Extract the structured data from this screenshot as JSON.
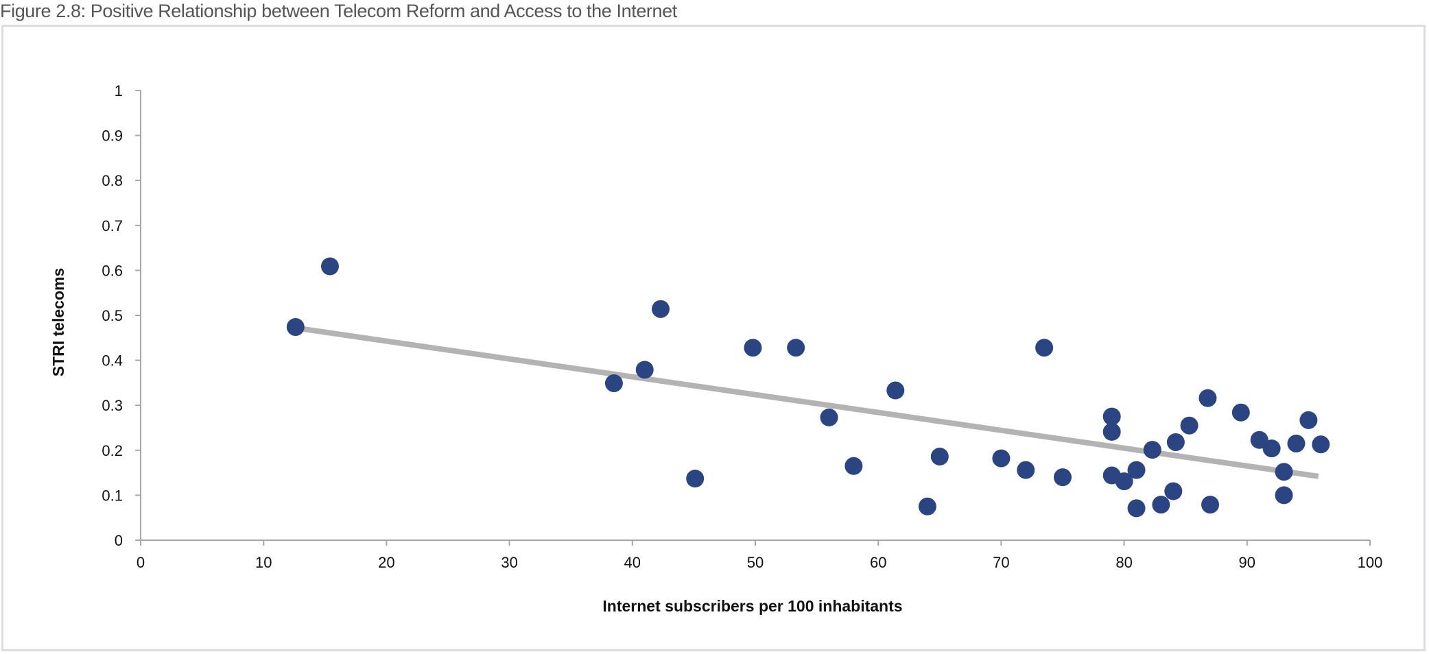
{
  "figure": {
    "caption": "Figure 2.8: Positive Relationship between Telecom Reform and Access to the Internet"
  },
  "chart_data": {
    "type": "scatter",
    "title": "",
    "xlabel": "Internet subscribers per 100 inhabitants",
    "ylabel": "STRI telecoms",
    "xlim": [
      0,
      100
    ],
    "ylim": [
      0,
      1
    ],
    "x_ticks": [
      0,
      10,
      20,
      30,
      40,
      50,
      60,
      70,
      80,
      90,
      100
    ],
    "y_ticks": [
      0,
      0.1,
      0.2,
      0.3,
      0.4,
      0.5,
      0.6,
      0.7,
      0.8,
      0.9,
      1
    ],
    "x_tick_labels": [
      "0",
      "10",
      "20",
      "30",
      "40",
      "50",
      "60",
      "70",
      "80",
      "90",
      "100"
    ],
    "y_tick_labels": [
      "0",
      "0.1",
      "0.2",
      "0.3",
      "0.4",
      "0.5",
      "0.6",
      "0.7",
      "0.8",
      "0.9",
      "1"
    ],
    "grid": false,
    "legend": "none",
    "marker_color": "#2b4582",
    "trendline_color": "#b3b3b3",
    "points": [
      {
        "x": 12.6,
        "y": 0.474
      },
      {
        "x": 15.4,
        "y": 0.609
      },
      {
        "x": 38.5,
        "y": 0.349
      },
      {
        "x": 41.0,
        "y": 0.379
      },
      {
        "x": 42.3,
        "y": 0.514
      },
      {
        "x": 45.1,
        "y": 0.137
      },
      {
        "x": 49.8,
        "y": 0.428
      },
      {
        "x": 53.3,
        "y": 0.428
      },
      {
        "x": 56.0,
        "y": 0.273
      },
      {
        "x": 58.0,
        "y": 0.165
      },
      {
        "x": 61.4,
        "y": 0.333
      },
      {
        "x": 64.0,
        "y": 0.075
      },
      {
        "x": 65.0,
        "y": 0.186
      },
      {
        "x": 70.0,
        "y": 0.182
      },
      {
        "x": 72.0,
        "y": 0.156
      },
      {
        "x": 73.5,
        "y": 0.428
      },
      {
        "x": 75.0,
        "y": 0.14
      },
      {
        "x": 79.0,
        "y": 0.275
      },
      {
        "x": 79.0,
        "y": 0.241
      },
      {
        "x": 79.0,
        "y": 0.144
      },
      {
        "x": 80.0,
        "y": 0.131
      },
      {
        "x": 81.0,
        "y": 0.156
      },
      {
        "x": 81.0,
        "y": 0.071
      },
      {
        "x": 82.3,
        "y": 0.201
      },
      {
        "x": 83.0,
        "y": 0.079
      },
      {
        "x": 84.0,
        "y": 0.109
      },
      {
        "x": 84.2,
        "y": 0.218
      },
      {
        "x": 85.3,
        "y": 0.255
      },
      {
        "x": 86.8,
        "y": 0.316
      },
      {
        "x": 87.0,
        "y": 0.079
      },
      {
        "x": 89.5,
        "y": 0.284
      },
      {
        "x": 91.0,
        "y": 0.223
      },
      {
        "x": 92.0,
        "y": 0.204
      },
      {
        "x": 93.0,
        "y": 0.152
      },
      {
        "x": 93.0,
        "y": 0.1
      },
      {
        "x": 94.0,
        "y": 0.215
      },
      {
        "x": 95.0,
        "y": 0.267
      },
      {
        "x": 96.0,
        "y": 0.213
      }
    ],
    "trendline": {
      "type": "linear",
      "x": [
        12.6,
        95.8
      ],
      "y": [
        0.472,
        0.142
      ]
    }
  }
}
